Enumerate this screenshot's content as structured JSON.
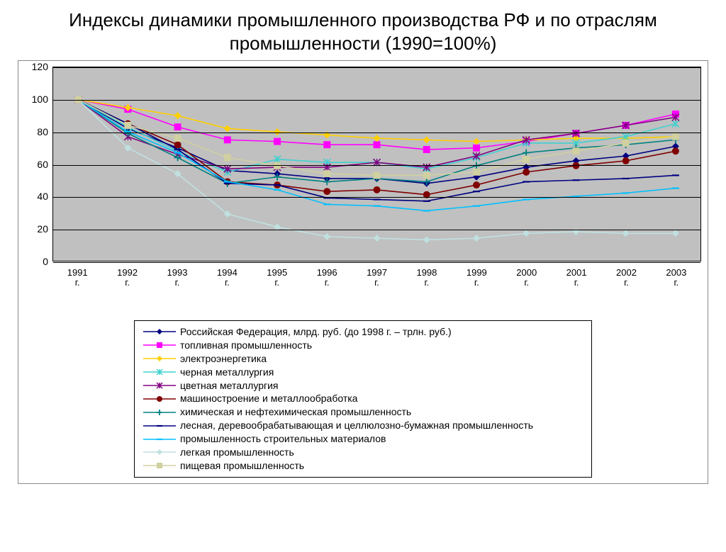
{
  "title": "Индексы динамики промышленного производства РФ и по отраслям промышленности (1990=100%)",
  "chart": {
    "type": "line",
    "background_color": "#c0c0c0",
    "grid_color": "#000000",
    "ylim": [
      0,
      120
    ],
    "ytick_step": 20,
    "yticks": [
      0,
      20,
      40,
      60,
      80,
      100,
      120
    ],
    "categories": [
      "1991 г.",
      "1992 г.",
      "1993 г.",
      "1994 г.",
      "1995 г.",
      "1996 г.",
      "1997 г.",
      "1998 г.",
      "1999 г.",
      "2000 г.",
      "2001 г.",
      "2002 г.",
      "2003 г."
    ],
    "label_fontsize": 14,
    "line_width": 1.6,
    "marker_size": 5,
    "series": [
      {
        "name": "Российская Федерация, млрд. руб. (до 1998 г. – трлн. руб.)",
        "color": "#000080",
        "marker": "diamond",
        "values": [
          100,
          82,
          70,
          56,
          54,
          51,
          51,
          48,
          52,
          58,
          62,
          65,
          71
        ]
      },
      {
        "name": "топливная промышленность",
        "color": "#ff00ff",
        "marker": "square",
        "values": [
          100,
          94,
          83,
          75,
          74,
          72,
          72,
          69,
          70,
          74,
          79,
          84,
          91
        ]
      },
      {
        "name": "электроэнергетика",
        "color": "#ffd000",
        "marker": "diamond",
        "values": [
          100,
          95,
          90,
          82,
          80,
          78,
          76,
          75,
          74,
          75,
          76,
          76,
          77
        ]
      },
      {
        "name": "черная металлургия",
        "color": "#40d0d0",
        "marker": "star",
        "values": [
          100,
          83,
          68,
          55,
          63,
          61,
          61,
          57,
          64,
          73,
          73,
          77,
          85
        ]
      },
      {
        "name": "цветная металлургия",
        "color": "#800080",
        "marker": "star",
        "values": [
          100,
          77,
          66,
          57,
          58,
          58,
          61,
          58,
          65,
          75,
          79,
          84,
          89
        ]
      },
      {
        "name": "машиностроение и металлообработка",
        "color": "#800000",
        "marker": "circle",
        "values": [
          100,
          85,
          72,
          49,
          47,
          43,
          44,
          41,
          47,
          55,
          59,
          62,
          68
        ]
      },
      {
        "name": "химическая и нефтехимическая промышленность",
        "color": "#008080",
        "marker": "plus",
        "values": [
          100,
          79,
          64,
          48,
          52,
          49,
          51,
          49,
          59,
          67,
          70,
          72,
          75
        ]
      },
      {
        "name": "лесная, деревообрабатывающая и целлюлозно-бумажная промышленность",
        "color": "#000080",
        "marker": "dash",
        "values": [
          100,
          85,
          69,
          48,
          47,
          39,
          38,
          37,
          43,
          49,
          50,
          51,
          53
        ]
      },
      {
        "name": "промышленность строительных материалов",
        "color": "#00c0ff",
        "marker": "dash",
        "values": [
          100,
          80,
          67,
          49,
          44,
          35,
          34,
          31,
          34,
          38,
          40,
          42,
          45
        ]
      },
      {
        "name": "легкая промышленность",
        "color": "#c0e0e0",
        "marker": "diamond",
        "values": [
          100,
          70,
          54,
          29,
          21,
          15,
          14,
          13,
          14,
          17,
          18,
          17,
          17
        ]
      },
      {
        "name": "пищевая промышленность",
        "color": "#d0d0a0",
        "marker": "square",
        "values": [
          100,
          84,
          76,
          64,
          59,
          54,
          53,
          53,
          55,
          63,
          68,
          73,
          77
        ]
      }
    ]
  }
}
